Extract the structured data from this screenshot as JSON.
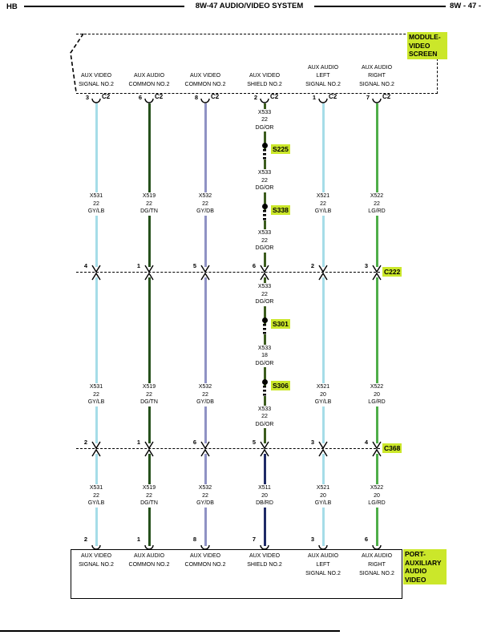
{
  "header": {
    "left": "HB",
    "title": "8W-47 AUDIO/VIDEO SYSTEM",
    "right": "8W - 47 -"
  },
  "top_module": {
    "lines": [
      "MODULE-",
      "VIDEO",
      "SCREEN"
    ]
  },
  "bottom_module": {
    "lines": [
      "PORT-",
      "AUXILIARY",
      "AUDIO",
      "VIDEO"
    ]
  },
  "inline_connectors": {
    "c222": "C222",
    "c368": "C368"
  },
  "colors": {
    "highlight": "#cbe72a",
    "wire_gylb": "#a6dde8",
    "wire_dgtn": "#26511c",
    "wire_gydb": "#8f92c4",
    "wire_dgor": "#3c5c1e",
    "wire_lgrd": "#4fae49",
    "wire_dbrd": "#1f2a66"
  },
  "columns": [
    {
      "top": {
        "pin": "3",
        "connector": "C2",
        "label": [
          "AUX VIDEO",
          "SIGNAL NO.2"
        ]
      },
      "section_colors": [
        "wire_gylb",
        "wire_gylb",
        "wire_gylb"
      ],
      "sections": [
        [
          {
            "type": "label",
            "lines": [
              "X531",
              "22",
              "GY/LB"
            ]
          }
        ],
        [
          {
            "type": "label",
            "lines": [
              "X531",
              "22",
              "GY/LB"
            ]
          }
        ],
        [
          {
            "type": "label",
            "lines": [
              "X531",
              "22",
              "GY/LB"
            ]
          }
        ]
      ],
      "c222_pin": "4",
      "c368_pin": "2",
      "bottom": {
        "pin": "2",
        "label": [
          "AUX VIDEO",
          "SIGNAL NO.2"
        ]
      }
    },
    {
      "top": {
        "pin": "6",
        "connector": "C2",
        "label": [
          "AUX AUDIO",
          "COMMON NO.2"
        ]
      },
      "section_colors": [
        "wire_dgtn",
        "wire_dgtn",
        "wire_dgtn"
      ],
      "sections": [
        [
          {
            "type": "label",
            "lines": [
              "X519",
              "22",
              "DG/TN"
            ]
          }
        ],
        [
          {
            "type": "label",
            "lines": [
              "X519",
              "22",
              "DG/TN"
            ]
          }
        ],
        [
          {
            "type": "label",
            "lines": [
              "X519",
              "22",
              "DG/TN"
            ]
          }
        ]
      ],
      "c222_pin": "1",
      "c368_pin": "1",
      "bottom": {
        "pin": "1",
        "label": [
          "AUX AUDIO",
          "COMMON NO.2"
        ]
      }
    },
    {
      "top": {
        "pin": "8",
        "connector": "C2",
        "label": [
          "AUX VIDEO",
          "COMMON NO.2"
        ]
      },
      "section_colors": [
        "wire_gydb",
        "wire_gydb",
        "wire_gydb"
      ],
      "sections": [
        [
          {
            "type": "label",
            "lines": [
              "X532",
              "22",
              "GY/DB"
            ]
          }
        ],
        [
          {
            "type": "label",
            "lines": [
              "X532",
              "22",
              "GY/DB"
            ]
          }
        ],
        [
          {
            "type": "label",
            "lines": [
              "X532",
              "22",
              "GY/DB"
            ]
          }
        ]
      ],
      "c222_pin": "5",
      "c368_pin": "6",
      "bottom": {
        "pin": "8",
        "label": [
          "AUX VIDEO",
          "COMMON NO.2"
        ]
      }
    },
    {
      "top": {
        "pin": "2",
        "connector": "C2",
        "label": [
          "AUX VIDEO",
          "SHIELD NO.2"
        ]
      },
      "section_colors": [
        "wire_dgor",
        "wire_dgor",
        "wire_dbrd"
      ],
      "sections": [
        [
          {
            "type": "label",
            "lines": [
              "X533",
              "22",
              "DG/OR"
            ]
          },
          {
            "type": "splice",
            "name": "S225"
          },
          {
            "type": "label",
            "lines": [
              "X533",
              "22",
              "DG/OR"
            ]
          },
          {
            "type": "splice",
            "name": "S338"
          },
          {
            "type": "label",
            "lines": [
              "X533",
              "22",
              "DG/OR"
            ]
          }
        ],
        [
          {
            "type": "label",
            "lines": [
              "X533",
              "22",
              "DG/OR"
            ]
          },
          {
            "type": "splice",
            "name": "S301"
          },
          {
            "type": "label",
            "lines": [
              "X533",
              "18",
              "DG/OR"
            ]
          },
          {
            "type": "splice",
            "name": "S306"
          },
          {
            "type": "label",
            "lines": [
              "X533",
              "22",
              "DG/OR"
            ]
          }
        ],
        [
          {
            "type": "label",
            "lines": [
              "X511",
              "20",
              "DB/RD"
            ]
          }
        ]
      ],
      "c222_pin": "6",
      "c368_pin": "5",
      "bottom": {
        "pin": "7",
        "label": [
          "AUX VIDEO",
          "SHIELD NO.2"
        ]
      }
    },
    {
      "top": {
        "pin": "1",
        "connector": "C2",
        "label": [
          "AUX AUDIO",
          "LEFT",
          "SIGNAL NO.2"
        ]
      },
      "section_colors": [
        "wire_gylb",
        "wire_gylb",
        "wire_gylb"
      ],
      "sections": [
        [
          {
            "type": "label",
            "lines": [
              "X521",
              "22",
              "GY/LB"
            ]
          }
        ],
        [
          {
            "type": "label",
            "lines": [
              "X521",
              "20",
              "GY/LB"
            ]
          }
        ],
        [
          {
            "type": "label",
            "lines": [
              "X521",
              "20",
              "GY/LB"
            ]
          }
        ]
      ],
      "c222_pin": "2",
      "c368_pin": "3",
      "bottom": {
        "pin": "3",
        "label": [
          "AUX AUDIO",
          "LEFT",
          "SIGNAL NO.2"
        ]
      }
    },
    {
      "top": {
        "pin": "7",
        "connector": "C2",
        "label": [
          "AUX AUDIO",
          "RIGHT",
          "SIGNAL NO.2"
        ]
      },
      "section_colors": [
        "wire_lgrd",
        "wire_lgrd",
        "wire_lgrd"
      ],
      "sections": [
        [
          {
            "type": "label",
            "lines": [
              "X522",
              "22",
              "LG/RD"
            ]
          }
        ],
        [
          {
            "type": "label",
            "lines": [
              "X522",
              "20",
              "LG/RD"
            ]
          }
        ],
        [
          {
            "type": "label",
            "lines": [
              "X522",
              "20",
              "LG/RD"
            ]
          }
        ]
      ],
      "c222_pin": "3",
      "c368_pin": "4",
      "bottom": {
        "pin": "6",
        "label": [
          "AUX AUDIO",
          "RIGHT",
          "SIGNAL NO.2"
        ]
      }
    }
  ]
}
